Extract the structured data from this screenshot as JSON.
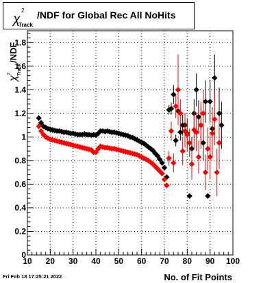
{
  "chart_data": {
    "type": "scatter",
    "title": {
      "symbol": "χ",
      "superscript": "2",
      "subscript": "Track",
      "text": "/NDF for Global Rec All NoHits"
    },
    "xlabel": "No. of Fit Points",
    "ylabel": {
      "symbol": "χ",
      "superscript": "2",
      "subscript": "Track",
      "text": "/NDF"
    },
    "xlim": [
      10,
      100
    ],
    "ylim": [
      0,
      1.9
    ],
    "x_ticks": [
      "10",
      "20",
      "30",
      "40",
      "50",
      "60",
      "70",
      "80",
      "90",
      "100"
    ],
    "y_ticks": [
      "0",
      "0.2",
      "0.4",
      "0.6",
      "0.8",
      "1",
      "1.2",
      "1.4",
      "1.6",
      "1.8"
    ],
    "grid": true,
    "series": [
      {
        "color": "#000000",
        "marker": "diamond",
        "points": [
          {
            "x": 15,
            "y": 1.16
          },
          {
            "x": 16,
            "y": 1.12
          },
          {
            "x": 17,
            "y": 1.09
          },
          {
            "x": 18,
            "y": 1.08
          },
          {
            "x": 19,
            "y": 1.07
          },
          {
            "x": 20,
            "y": 1.065
          },
          {
            "x": 21,
            "y": 1.06
          },
          {
            "x": 22,
            "y": 1.055
          },
          {
            "x": 23,
            "y": 1.05
          },
          {
            "x": 24,
            "y": 1.05
          },
          {
            "x": 25,
            "y": 1.045
          },
          {
            "x": 26,
            "y": 1.04
          },
          {
            "x": 27,
            "y": 1.04
          },
          {
            "x": 28,
            "y": 1.035
          },
          {
            "x": 29,
            "y": 1.03
          },
          {
            "x": 30,
            "y": 1.03
          },
          {
            "x": 31,
            "y": 1.025
          },
          {
            "x": 32,
            "y": 1.02
          },
          {
            "x": 33,
            "y": 1.02
          },
          {
            "x": 34,
            "y": 1.02
          },
          {
            "x": 35,
            "y": 1.025
          },
          {
            "x": 36,
            "y": 1.02
          },
          {
            "x": 37,
            "y": 1.02
          },
          {
            "x": 38,
            "y": 1.015
          },
          {
            "x": 39,
            "y": 1.02
          },
          {
            "x": 40,
            "y": 1.015
          },
          {
            "x": 41,
            "y": 1.03
          },
          {
            "x": 42,
            "y": 1.05
          },
          {
            "x": 43,
            "y": 1.05
          },
          {
            "x": 44,
            "y": 1.045
          },
          {
            "x": 45,
            "y": 1.05
          },
          {
            "x": 46,
            "y": 1.045
          },
          {
            "x": 47,
            "y": 1.04
          },
          {
            "x": 48,
            "y": 1.04
          },
          {
            "x": 49,
            "y": 1.035
          },
          {
            "x": 50,
            "y": 1.03
          },
          {
            "x": 51,
            "y": 1.025
          },
          {
            "x": 52,
            "y": 1.02
          },
          {
            "x": 53,
            "y": 1.015
          },
          {
            "x": 54,
            "y": 1.01
          },
          {
            "x": 55,
            "y": 1.0
          },
          {
            "x": 56,
            "y": 0.995
          },
          {
            "x": 57,
            "y": 0.985
          },
          {
            "x": 58,
            "y": 0.975
          },
          {
            "x": 59,
            "y": 0.965
          },
          {
            "x": 60,
            "y": 0.955
          },
          {
            "x": 61,
            "y": 0.945
          },
          {
            "x": 62,
            "y": 0.93
          },
          {
            "x": 63,
            "y": 0.915
          },
          {
            "x": 64,
            "y": 0.9
          },
          {
            "x": 65,
            "y": 0.885
          },
          {
            "x": 66,
            "y": 0.86
          },
          {
            "x": 67,
            "y": 0.84
          },
          {
            "x": 68,
            "y": 0.81
          },
          {
            "x": 69,
            "y": 0.78
          },
          {
            "x": 70,
            "y": 0.74
          },
          {
            "x": 71,
            "y": 0.66
          },
          {
            "x": 72,
            "y": 1.23,
            "err": 0.04
          },
          {
            "x": 73,
            "y": 1.24,
            "err": 0.05
          },
          {
            "x": 74,
            "y": 1.36,
            "err": 0.08
          },
          {
            "x": 75,
            "y": 0.97,
            "err": 0.05
          },
          {
            "x": 76,
            "y": 1.22,
            "err": 0.08
          },
          {
            "x": 77,
            "y": 1.04,
            "err": 0.07
          },
          {
            "x": 78,
            "y": 1.1,
            "err": 0.09
          },
          {
            "x": 79,
            "y": 1.1,
            "err": 0.1
          },
          {
            "x": 80,
            "y": 1.03,
            "err": 0.12
          },
          {
            "x": 81,
            "y": 0.5
          },
          {
            "x": 82,
            "y": 0.9,
            "err": 0.1
          },
          {
            "x": 83,
            "y": 1.2,
            "err": 0.12
          },
          {
            "x": 84,
            "y": 1.4,
            "err": 0.14
          },
          {
            "x": 85,
            "y": 1.17,
            "err": 0.14
          },
          {
            "x": 86,
            "y": 1.1,
            "err": 0.16
          },
          {
            "x": 87,
            "y": 0.95,
            "err": 0.15
          },
          {
            "x": 88,
            "y": 1.3,
            "err": 0.18
          },
          {
            "x": 89,
            "y": 0.5
          },
          {
            "x": 90,
            "y": 1.3,
            "err": 0.18
          },
          {
            "x": 91,
            "y": 1.07,
            "err": 0.18
          },
          {
            "x": 92,
            "y": 1.5,
            "err": 0.2
          },
          {
            "x": 94,
            "y": 1.2,
            "err": 0.22
          },
          {
            "x": 95,
            "y": 1.1,
            "err": 0.2
          }
        ]
      },
      {
        "color": "#ff0000",
        "marker": "diamond",
        "points": [
          {
            "x": 15,
            "y": 1.09
          },
          {
            "x": 16,
            "y": 1.05
          },
          {
            "x": 17,
            "y": 1.02
          },
          {
            "x": 18,
            "y": 1.0
          },
          {
            "x": 19,
            "y": 0.99
          },
          {
            "x": 20,
            "y": 0.98
          },
          {
            "x": 21,
            "y": 0.975
          },
          {
            "x": 22,
            "y": 0.97
          },
          {
            "x": 23,
            "y": 0.965
          },
          {
            "x": 24,
            "y": 0.96
          },
          {
            "x": 25,
            "y": 0.955
          },
          {
            "x": 26,
            "y": 0.95
          },
          {
            "x": 27,
            "y": 0.945
          },
          {
            "x": 28,
            "y": 0.94
          },
          {
            "x": 29,
            "y": 0.935
          },
          {
            "x": 30,
            "y": 0.93
          },
          {
            "x": 31,
            "y": 0.925
          },
          {
            "x": 32,
            "y": 0.92
          },
          {
            "x": 33,
            "y": 0.915
          },
          {
            "x": 34,
            "y": 0.91
          },
          {
            "x": 35,
            "y": 0.905
          },
          {
            "x": 36,
            "y": 0.9
          },
          {
            "x": 37,
            "y": 0.895
          },
          {
            "x": 38,
            "y": 0.89
          },
          {
            "x": 39,
            "y": 0.87
          },
          {
            "x": 40,
            "y": 0.87
          },
          {
            "x": 41,
            "y": 0.9
          },
          {
            "x": 42,
            "y": 0.92
          },
          {
            "x": 43,
            "y": 0.915
          },
          {
            "x": 44,
            "y": 0.91
          },
          {
            "x": 45,
            "y": 0.91
          },
          {
            "x": 46,
            "y": 0.905
          },
          {
            "x": 47,
            "y": 0.9
          },
          {
            "x": 48,
            "y": 0.9
          },
          {
            "x": 49,
            "y": 0.895
          },
          {
            "x": 50,
            "y": 0.89
          },
          {
            "x": 51,
            "y": 0.885
          },
          {
            "x": 52,
            "y": 0.88
          },
          {
            "x": 53,
            "y": 0.875
          },
          {
            "x": 54,
            "y": 0.87
          },
          {
            "x": 55,
            "y": 0.865
          },
          {
            "x": 56,
            "y": 0.86
          },
          {
            "x": 57,
            "y": 0.855
          },
          {
            "x": 58,
            "y": 0.85
          },
          {
            "x": 59,
            "y": 0.84
          },
          {
            "x": 60,
            "y": 0.83
          },
          {
            "x": 61,
            "y": 0.82
          },
          {
            "x": 62,
            "y": 0.81
          },
          {
            "x": 63,
            "y": 0.8
          },
          {
            "x": 64,
            "y": 0.785
          },
          {
            "x": 65,
            "y": 0.77
          },
          {
            "x": 66,
            "y": 0.75
          },
          {
            "x": 67,
            "y": 0.73
          },
          {
            "x": 68,
            "y": 0.71
          },
          {
            "x": 69,
            "y": 0.69
          },
          {
            "x": 70,
            "y": 0.64
          },
          {
            "x": 71,
            "y": 0.59
          },
          {
            "x": 72,
            "y": 0.82,
            "err": 0.06
          },
          {
            "x": 73,
            "y": 1.05,
            "err": 0.08
          },
          {
            "x": 74,
            "y": 0.78,
            "err": 0.08
          },
          {
            "x": 75,
            "y": 1.26,
            "err": 0.1
          },
          {
            "x": 76,
            "y": 1.4,
            "err": 0.3
          },
          {
            "x": 77,
            "y": 1.2,
            "err": 0.12
          },
          {
            "x": 78,
            "y": 0.88,
            "err": 0.12
          },
          {
            "x": 79,
            "y": 1.05,
            "err": 0.14
          },
          {
            "x": 80,
            "y": 1.02,
            "err": 0.14
          },
          {
            "x": 81,
            "y": 0.95,
            "err": 0.12
          },
          {
            "x": 82,
            "y": 0.77,
            "err": 0.13
          },
          {
            "x": 83,
            "y": 1.06,
            "err": 0.16
          },
          {
            "x": 84,
            "y": 1.04,
            "err": 0.16
          },
          {
            "x": 85,
            "y": 0.83,
            "err": 0.14
          },
          {
            "x": 86,
            "y": 1.1,
            "err": 0.2
          },
          {
            "x": 87,
            "y": 1.2,
            "err": 0.2
          },
          {
            "x": 88,
            "y": 0.7,
            "err": 0.15
          },
          {
            "x": 89,
            "y": 0.9,
            "err": 0.18
          },
          {
            "x": 90,
            "y": 0.83,
            "err": 0.18
          },
          {
            "x": 91,
            "y": 1.03,
            "err": 0.2
          },
          {
            "x": 92,
            "y": 1.15,
            "err": 0.22
          },
          {
            "x": 93,
            "y": 0.7,
            "err": 0.2
          },
          {
            "x": 94,
            "y": 0.95,
            "err": 0.22
          }
        ]
      }
    ]
  },
  "footer": {
    "datestamp": "Fri Feb 18 17:25:21 2022"
  }
}
